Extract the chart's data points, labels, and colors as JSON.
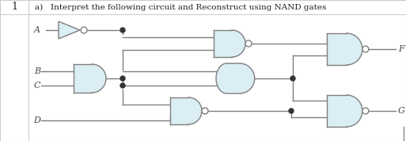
{
  "bg_color": "#ffffff",
  "gate_fill": "#daeef3",
  "gate_edge": "#7f7f7f",
  "wire_color": "#7f7f7f",
  "text_color": "#1f1f1f",
  "wire_lw": 1.0,
  "gate_lw": 1.0,
  "title_num": "1",
  "title_text": "a)   Interpret the following circuit and Reconstruct using NAND gates",
  "labels_in": [
    "A",
    "B",
    "C",
    "D"
  ],
  "labels_out": [
    "F",
    "G"
  ],
  "border_color": "#aaaaaa"
}
